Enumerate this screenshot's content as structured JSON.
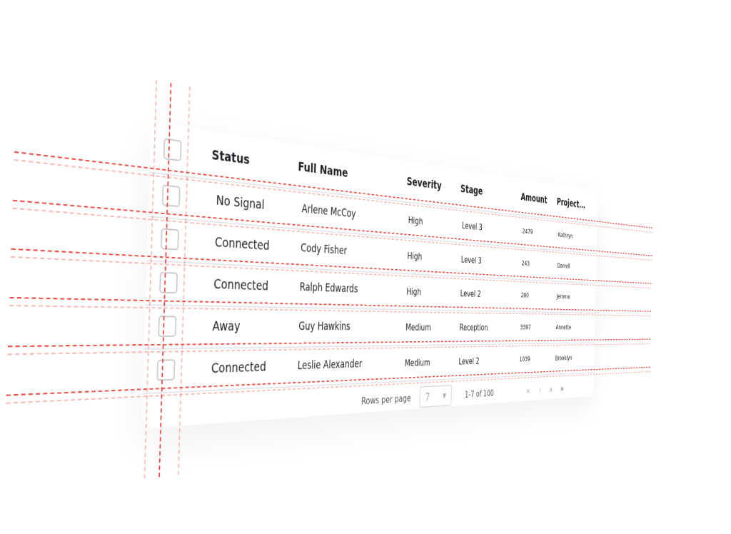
{
  "table": {
    "columns": [
      "Status",
      "Full Name",
      "Severity",
      "Stage",
      "Amount",
      "Project..."
    ],
    "rows": [
      {
        "status": "No Signal",
        "name": "Arlene McCoy",
        "severity": "High",
        "stage": "Level 3",
        "amount": "2479",
        "project": "Kathryn"
      },
      {
        "status": "Connected",
        "name": "Cody Fisher",
        "severity": "High",
        "stage": "Level 3",
        "amount": "243",
        "project": "Darrell"
      },
      {
        "status": "Connected",
        "name": "Ralph Edwards",
        "severity": "High",
        "stage": "Level 2",
        "amount": "280",
        "project": "Jerome"
      },
      {
        "status": "Away",
        "name": "Guy Hawkins",
        "severity": "Medium",
        "stage": "Reception",
        "amount": "3397",
        "project": "Annette"
      },
      {
        "status": "Connected",
        "name": "Leslie Alexander",
        "severity": "Medium",
        "stage": "Level 2",
        "amount": "1039",
        "project": "Brooklyn"
      }
    ]
  },
  "pagination": {
    "rows_per_page_label": "Rows per page",
    "rows_per_page_value": "7",
    "range": "1-7 of 100",
    "first": "«",
    "prev": "‹",
    "next": "›",
    "last": "»"
  },
  "colors": {
    "guide": "#e8423b",
    "divider": "#e6e6ea"
  }
}
